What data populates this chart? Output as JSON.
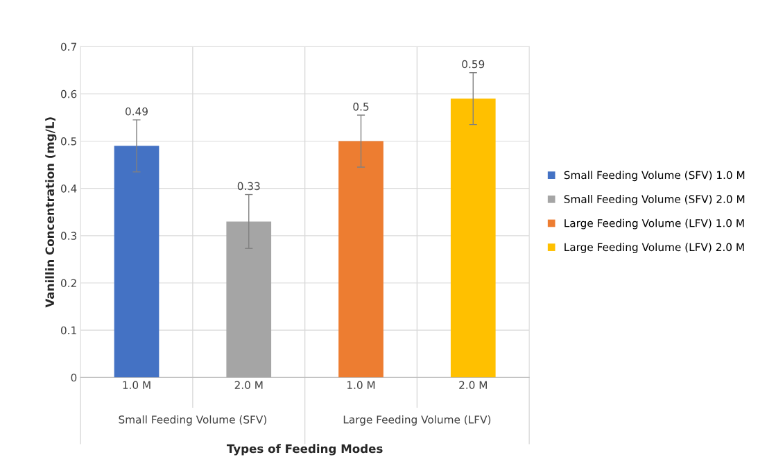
{
  "chart_data": {
    "type": "bar",
    "xlabel": "Types of Feeding Modes",
    "ylabel": "Vanillin Concentration (mg/L)",
    "categories": [
      "1.0 M",
      "2.0 M",
      "1.0 M",
      "2.0 M"
    ],
    "annotations": [
      "Small Feeding Volume (SFV)",
      "Large Feeding Volume (LFV)"
    ],
    "series": [
      {
        "name": "Small Feeding Volume (SFV) 1.0 M",
        "color": "#4472c4",
        "values": [
          0.49,
          null,
          null,
          null
        ],
        "errors": [
          0.055,
          null,
          null,
          null
        ]
      },
      {
        "name": "Small Feeding Volume (SFV) 2.0 M",
        "color": "#a5a5a5",
        "values": [
          null,
          0.33,
          null,
          null
        ],
        "errors": [
          null,
          0.057,
          null,
          null
        ]
      },
      {
        "name": "Large Feeding Volume (LFV) 1.0 M",
        "color": "#ed7d31",
        "values": [
          null,
          null,
          0.5,
          null
        ],
        "errors": [
          null,
          null,
          0.055,
          null
        ]
      },
      {
        "name": "Large Feeding Volume (LFV) 2.0 M",
        "color": "#ffc000",
        "values": [
          null,
          null,
          null,
          0.59
        ],
        "errors": [
          null,
          null,
          null,
          0.055
        ]
      }
    ],
    "ylim": [
      0,
      0.7
    ],
    "yticks": [
      0,
      0.1,
      0.2,
      0.3,
      0.4,
      0.5,
      0.6,
      0.7
    ],
    "grid": true,
    "legend": "right",
    "data_labels": true
  }
}
